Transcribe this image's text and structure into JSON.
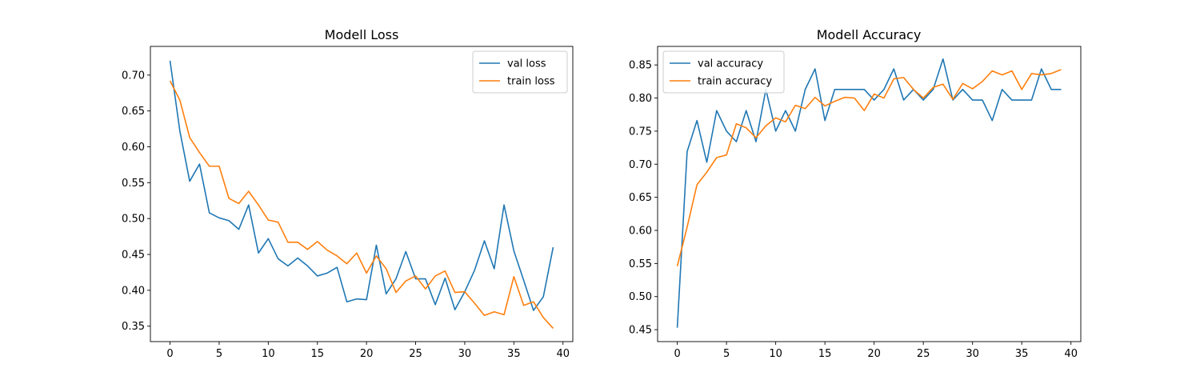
{
  "chart_data": [
    {
      "type": "line",
      "title": "Modell Loss",
      "xlabel": "",
      "ylabel": "",
      "xlim": [
        -2,
        41
      ],
      "ylim": [
        0.3285,
        0.74
      ],
      "xticks": [
        0,
        5,
        10,
        15,
        20,
        25,
        30,
        35,
        40
      ],
      "yticks": [
        0.35,
        0.4,
        0.45,
        0.5,
        0.55,
        0.6,
        0.65,
        0.7
      ],
      "ytick_labels": [
        "0.35",
        "0.40",
        "0.45",
        "0.50",
        "0.55",
        "0.60",
        "0.65",
        "0.70"
      ],
      "grid": false,
      "legend": "upper-right",
      "x": [
        0,
        1,
        2,
        3,
        4,
        5,
        6,
        7,
        8,
        9,
        10,
        11,
        12,
        13,
        14,
        15,
        16,
        17,
        18,
        19,
        20,
        21,
        22,
        23,
        24,
        25,
        26,
        27,
        28,
        29,
        30,
        31,
        32,
        33,
        34,
        35,
        36,
        37,
        38,
        39
      ],
      "series": [
        {
          "name": "val loss",
          "color": "#1f77b4",
          "values": [
            0.72,
            0.622,
            0.552,
            0.576,
            0.508,
            0.501,
            0.497,
            0.485,
            0.519,
            0.452,
            0.472,
            0.444,
            0.434,
            0.445,
            0.434,
            0.42,
            0.424,
            0.432,
            0.384,
            0.388,
            0.387,
            0.463,
            0.395,
            0.416,
            0.454,
            0.416,
            0.416,
            0.38,
            0.417,
            0.373,
            0.398,
            0.428,
            0.469,
            0.43,
            0.519,
            0.455,
            0.414,
            0.372,
            0.391,
            0.46
          ]
        },
        {
          "name": "train loss",
          "color": "#ff7f0e",
          "values": [
            0.692,
            0.665,
            0.613,
            0.592,
            0.573,
            0.573,
            0.528,
            0.521,
            0.538,
            0.519,
            0.498,
            0.495,
            0.467,
            0.467,
            0.457,
            0.468,
            0.456,
            0.448,
            0.437,
            0.452,
            0.424,
            0.448,
            0.43,
            0.397,
            0.413,
            0.42,
            0.402,
            0.42,
            0.427,
            0.397,
            0.398,
            0.382,
            0.365,
            0.37,
            0.366,
            0.419,
            0.379,
            0.384,
            0.362,
            0.347
          ]
        }
      ]
    },
    {
      "type": "line",
      "title": "Modell Accuracy",
      "xlabel": "",
      "ylabel": "",
      "xlim": [
        -2,
        41
      ],
      "ylim": [
        0.432,
        0.878
      ],
      "xticks": [
        0,
        5,
        10,
        15,
        20,
        25,
        30,
        35,
        40
      ],
      "yticks": [
        0.45,
        0.5,
        0.55,
        0.6,
        0.65,
        0.7,
        0.75,
        0.8,
        0.85
      ],
      "ytick_labels": [
        "0.45",
        "0.50",
        "0.55",
        "0.60",
        "0.65",
        "0.70",
        "0.75",
        "0.80",
        "0.85"
      ],
      "grid": false,
      "legend": "upper-left",
      "x": [
        0,
        1,
        2,
        3,
        4,
        5,
        6,
        7,
        8,
        9,
        10,
        11,
        12,
        13,
        14,
        15,
        16,
        17,
        18,
        19,
        20,
        21,
        22,
        23,
        24,
        25,
        26,
        27,
        28,
        29,
        30,
        31,
        32,
        33,
        34,
        35,
        36,
        37,
        38,
        39
      ],
      "series": [
        {
          "name": "val accuracy",
          "color": "#1f77b4",
          "values": [
            0.453,
            0.719,
            0.766,
            0.703,
            0.781,
            0.75,
            0.734,
            0.781,
            0.734,
            0.813,
            0.75,
            0.781,
            0.75,
            0.813,
            0.844,
            0.766,
            0.813,
            0.813,
            0.813,
            0.813,
            0.797,
            0.813,
            0.844,
            0.797,
            0.813,
            0.797,
            0.813,
            0.859,
            0.797,
            0.813,
            0.797,
            0.797,
            0.766,
            0.813,
            0.797,
            0.797,
            0.797,
            0.844,
            0.813,
            0.813
          ]
        },
        {
          "name": "train accuracy",
          "color": "#ff7f0e",
          "values": [
            0.546,
            0.605,
            0.669,
            0.688,
            0.71,
            0.714,
            0.761,
            0.755,
            0.74,
            0.758,
            0.77,
            0.764,
            0.789,
            0.784,
            0.801,
            0.788,
            0.795,
            0.801,
            0.8,
            0.781,
            0.806,
            0.8,
            0.829,
            0.831,
            0.813,
            0.8,
            0.816,
            0.821,
            0.798,
            0.822,
            0.814,
            0.825,
            0.841,
            0.835,
            0.841,
            0.813,
            0.837,
            0.835,
            0.837,
            0.843
          ]
        }
      ]
    }
  ]
}
